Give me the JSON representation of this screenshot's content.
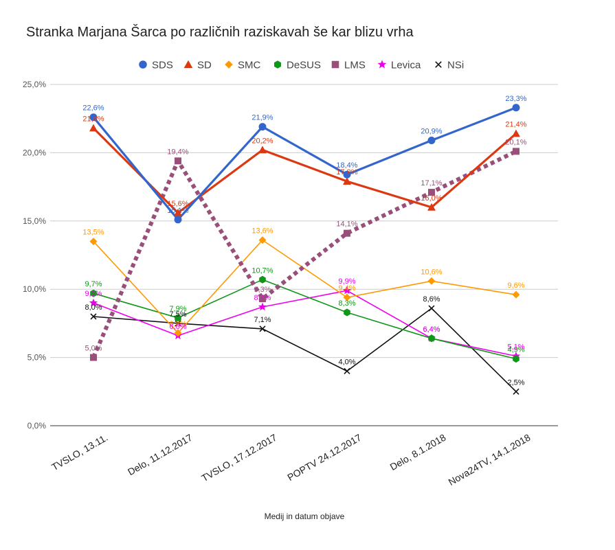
{
  "chart_data": {
    "type": "line",
    "title": "Stranka Marjana Šarca po različnih raziskavah še kar blizu vrha",
    "xlabel": "Medij in datum objave",
    "ylabel": "",
    "ylim": [
      0,
      25
    ],
    "y_ticks": [
      0,
      5,
      10,
      15,
      20,
      25
    ],
    "y_tick_labels": [
      "0,0%",
      "5,0%",
      "10,0%",
      "15,0%",
      "20,0%",
      "25,0%"
    ],
    "grid": true,
    "legend_position": "top",
    "categories": [
      "TVSLO, 13.11.",
      "Delo, 11.12.2017",
      "TVSLO, 17.12.2017",
      "POPTV 24.12.2017",
      "Delo, 8.1.2018",
      "Nova24TV, 14.1.2018"
    ],
    "series": [
      {
        "name": "SDS",
        "color": "#3366cc",
        "marker": "circle",
        "dashed": false,
        "values": [
          22.6,
          15.1,
          21.9,
          18.4,
          20.9,
          23.3
        ],
        "labels": [
          "22,6%",
          "15,1%",
          "21,9%",
          "18,4%",
          "20,9%",
          "23,3%"
        ]
      },
      {
        "name": "SD",
        "color": "#dc3912",
        "marker": "triangle",
        "dashed": false,
        "values": [
          21.8,
          15.6,
          20.2,
          17.9,
          16.0,
          21.4
        ],
        "labels": [
          "21,8%",
          "15,6%",
          "20,2%",
          "17,9%",
          "16,0%",
          "21,4%"
        ]
      },
      {
        "name": "SMC",
        "color": "#ff9900",
        "marker": "diamond",
        "dashed": false,
        "values": [
          13.5,
          6.8,
          13.6,
          9.4,
          10.6,
          9.6
        ],
        "labels": [
          "13,5%",
          "6,8%",
          "13,6%",
          "9,4%",
          "10,6%",
          "9,6%"
        ]
      },
      {
        "name": "DeSUS",
        "color": "#109618",
        "marker": "hexagon",
        "dashed": false,
        "values": [
          9.7,
          7.9,
          10.7,
          8.3,
          6.4,
          4.9
        ],
        "labels": [
          "9,7%",
          "7,9%",
          "10,7%",
          "8,3%",
          "6,4%",
          "4,9%"
        ]
      },
      {
        "name": "LMS",
        "color": "#994f7a",
        "marker": "square",
        "dashed": true,
        "values": [
          5.0,
          19.4,
          9.3,
          14.1,
          17.1,
          20.1
        ],
        "labels": [
          "5,0%",
          "19,4%",
          "9,3%",
          "14,1%",
          "17,1%",
          "20,1%"
        ]
      },
      {
        "name": "Levica",
        "color": "#ee00ee",
        "marker": "star",
        "dashed": false,
        "values": [
          9.0,
          6.6,
          8.7,
          9.9,
          6.4,
          5.1
        ],
        "labels": [
          "9,0%",
          "6,6%",
          "8,7%",
          "9,9%",
          "6,4%",
          "5,1%"
        ]
      },
      {
        "name": "NSi",
        "color": "#111111",
        "marker": "x",
        "dashed": false,
        "values": [
          8.0,
          7.5,
          7.1,
          4.0,
          8.6,
          2.5
        ],
        "labels": [
          "8,0%",
          "7,5%",
          "7,1%",
          "4,0%",
          "8,6%",
          "2,5%"
        ]
      }
    ]
  }
}
